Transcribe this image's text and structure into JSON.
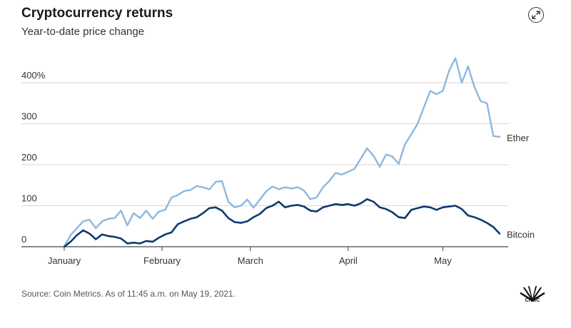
{
  "header": {
    "title": "Cryptocurrency returns",
    "subtitle": "Year-to-date price change"
  },
  "footer": {
    "source": "Source: Coin Metrics. As of 11:45 a.m. on May 19, 2021.",
    "logo_text": "CNBC"
  },
  "icons": {
    "expand": "expand-icon",
    "logo": "cnbc-peacock-logo"
  },
  "chart_data": {
    "type": "line",
    "title": "Cryptocurrency returns",
    "subtitle": "Year-to-date price change",
    "xlabel": "",
    "ylabel": "",
    "ylim": [
      0,
      420
    ],
    "y_ticks": [
      0,
      100,
      200,
      300,
      400
    ],
    "y_tick_labels": [
      "0",
      "100",
      "200",
      "300",
      "400%"
    ],
    "x_ticks": [
      "2021-01-01",
      "2021-02-01",
      "2021-03-01",
      "2021-04-01",
      "2021-05-01"
    ],
    "x_tick_labels": [
      "January",
      "February",
      "March",
      "April",
      "May"
    ],
    "grid": "horizontal",
    "legend": "inline-right",
    "series": [
      {
        "name": "Ether",
        "color": "#8cb8df",
        "x": [
          "2021-01-01",
          "2021-01-03",
          "2021-01-05",
          "2021-01-07",
          "2021-01-09",
          "2021-01-11",
          "2021-01-13",
          "2021-01-15",
          "2021-01-17",
          "2021-01-19",
          "2021-01-21",
          "2021-01-23",
          "2021-01-25",
          "2021-01-27",
          "2021-01-29",
          "2021-01-31",
          "2021-02-02",
          "2021-02-04",
          "2021-02-06",
          "2021-02-08",
          "2021-02-10",
          "2021-02-12",
          "2021-02-14",
          "2021-02-16",
          "2021-02-18",
          "2021-02-20",
          "2021-02-22",
          "2021-02-24",
          "2021-02-26",
          "2021-02-28",
          "2021-03-02",
          "2021-03-04",
          "2021-03-06",
          "2021-03-08",
          "2021-03-10",
          "2021-03-12",
          "2021-03-14",
          "2021-03-16",
          "2021-03-18",
          "2021-03-20",
          "2021-03-22",
          "2021-03-24",
          "2021-03-26",
          "2021-03-28",
          "2021-03-30",
          "2021-04-01",
          "2021-04-03",
          "2021-04-05",
          "2021-04-07",
          "2021-04-09",
          "2021-04-11",
          "2021-04-13",
          "2021-04-15",
          "2021-04-17",
          "2021-04-19",
          "2021-04-21",
          "2021-04-23",
          "2021-04-25",
          "2021-04-27",
          "2021-04-29",
          "2021-05-01",
          "2021-05-03",
          "2021-05-05",
          "2021-05-07",
          "2021-05-09",
          "2021-05-11",
          "2021-05-13",
          "2021-05-15",
          "2021-05-17",
          "2021-05-19"
        ],
        "values": [
          0,
          28,
          45,
          62,
          66,
          45,
          62,
          68,
          70,
          88,
          52,
          82,
          70,
          88,
          68,
          86,
          90,
          120,
          126,
          136,
          138,
          148,
          145,
          140,
          158,
          160,
          110,
          96,
          100,
          115,
          95,
          115,
          135,
          147,
          140,
          145,
          142,
          145,
          137,
          116,
          120,
          145,
          160,
          180,
          176,
          183,
          190,
          215,
          240,
          222,
          195,
          225,
          220,
          202,
          250,
          274,
          300,
          340,
          380,
          372,
          380,
          430,
          460,
          400,
          440,
          390,
          355,
          350,
          270,
          268
        ]
      },
      {
        "name": "Bitcoin",
        "color": "#0d3a70",
        "x": [
          "2021-01-01",
          "2021-01-03",
          "2021-01-05",
          "2021-01-07",
          "2021-01-09",
          "2021-01-11",
          "2021-01-13",
          "2021-01-15",
          "2021-01-17",
          "2021-01-19",
          "2021-01-21",
          "2021-01-23",
          "2021-01-25",
          "2021-01-27",
          "2021-01-29",
          "2021-01-31",
          "2021-02-02",
          "2021-02-04",
          "2021-02-06",
          "2021-02-08",
          "2021-02-10",
          "2021-02-12",
          "2021-02-14",
          "2021-02-16",
          "2021-02-18",
          "2021-02-20",
          "2021-02-22",
          "2021-02-24",
          "2021-02-26",
          "2021-02-28",
          "2021-03-02",
          "2021-03-04",
          "2021-03-06",
          "2021-03-08",
          "2021-03-10",
          "2021-03-12",
          "2021-03-14",
          "2021-03-16",
          "2021-03-18",
          "2021-03-20",
          "2021-03-22",
          "2021-03-24",
          "2021-03-26",
          "2021-03-28",
          "2021-03-30",
          "2021-04-01",
          "2021-04-03",
          "2021-04-05",
          "2021-04-07",
          "2021-04-09",
          "2021-04-11",
          "2021-04-13",
          "2021-04-15",
          "2021-04-17",
          "2021-04-19",
          "2021-04-21",
          "2021-04-23",
          "2021-04-25",
          "2021-04-27",
          "2021-04-29",
          "2021-05-01",
          "2021-05-03",
          "2021-05-05",
          "2021-05-07",
          "2021-05-09",
          "2021-05-11",
          "2021-05-13",
          "2021-05-15",
          "2021-05-17",
          "2021-05-19"
        ],
        "values": [
          0,
          12,
          28,
          40,
          32,
          18,
          30,
          26,
          24,
          20,
          8,
          10,
          8,
          14,
          12,
          22,
          30,
          35,
          55,
          62,
          68,
          72,
          82,
          94,
          96,
          88,
          70,
          60,
          58,
          62,
          72,
          80,
          94,
          100,
          110,
          96,
          100,
          102,
          98,
          88,
          86,
          96,
          100,
          104,
          102,
          104,
          100,
          106,
          116,
          110,
          96,
          92,
          84,
          72,
          70,
          90,
          94,
          98,
          96,
          90,
          96,
          98,
          100,
          92,
          76,
          72,
          66,
          58,
          48,
          32
        ]
      }
    ]
  }
}
